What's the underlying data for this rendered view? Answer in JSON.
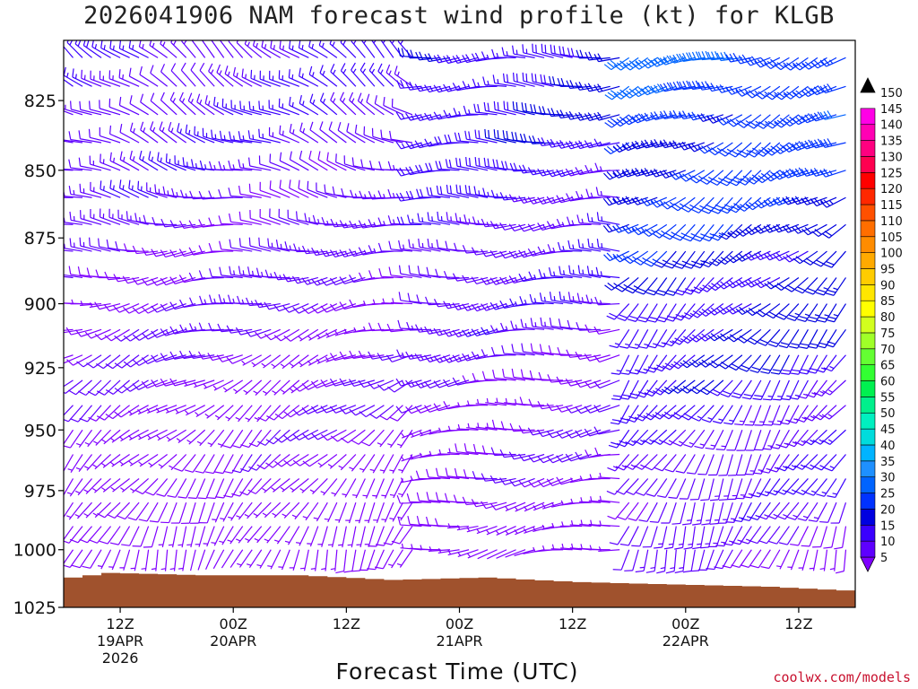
{
  "title": "2026041906 NAM forecast wind profile (kt) for KLGB",
  "credit": "coolwx.com/models",
  "chart_data": {
    "type": "wind-barb-profile",
    "title": "2026041906 NAM forecast wind profile (kt) for KLGB",
    "xlabel": "Forecast Time (UTC)",
    "ylabel": "",
    "y_axis": {
      "ticks": [
        825,
        850,
        875,
        900,
        925,
        950,
        975,
        1000,
        1025
      ],
      "range": [
        804,
        1025
      ],
      "reversed": true,
      "log_scale": true
    },
    "x_axis": {
      "range_hours": [
        6,
        90
      ],
      "ticks": [
        {
          "hour": 12,
          "label": "12Z",
          "date": "19APR",
          "year": "2026"
        },
        {
          "hour": 24,
          "label": "00Z",
          "date": "20APR",
          "year": ""
        },
        {
          "hour": 36,
          "label": "12Z",
          "date": "",
          "year": ""
        },
        {
          "hour": 48,
          "label": "00Z",
          "date": "21APR",
          "year": ""
        },
        {
          "hour": 60,
          "label": "12Z",
          "date": "",
          "year": ""
        },
        {
          "hour": 72,
          "label": "00Z",
          "date": "22APR",
          "year": ""
        },
        {
          "hour": 84,
          "label": "12Z",
          "date": "",
          "year": ""
        }
      ]
    },
    "colorbar": {
      "levels": [
        5,
        10,
        15,
        20,
        25,
        30,
        35,
        40,
        45,
        50,
        55,
        60,
        65,
        70,
        75,
        80,
        85,
        90,
        95,
        100,
        105,
        110,
        115,
        120,
        125,
        130,
        135,
        140,
        145,
        150
      ],
      "colors": [
        "#7f00ff",
        "#5e00ff",
        "#3a00ff",
        "#0000e0",
        "#0032ff",
        "#0064ff",
        "#1e90ff",
        "#00b4ff",
        "#00dcdc",
        "#00f0c0",
        "#00f08c",
        "#00f050",
        "#32ff32",
        "#64ff32",
        "#a0ff28",
        "#d2ff1e",
        "#ffff00",
        "#ffe600",
        "#ffcc00",
        "#ffaa00",
        "#ff8c00",
        "#ff6e00",
        "#ff5000",
        "#ff2800",
        "#ff0000",
        "#ff0050",
        "#ff0080",
        "#ff00b4",
        "#ff00e6",
        "#000000"
      ]
    },
    "terrain_color": "#a0522d",
    "surface_pressure": [
      {
        "hour": 6,
        "p": 1012
      },
      {
        "hour": 10,
        "p": 1010
      },
      {
        "hour": 20,
        "p": 1011
      },
      {
        "hour": 30,
        "p": 1011
      },
      {
        "hour": 40,
        "p": 1013
      },
      {
        "hour": 50,
        "p": 1012
      },
      {
        "hour": 60,
        "p": 1014
      },
      {
        "hour": 70,
        "p": 1015
      },
      {
        "hour": 80,
        "p": 1016
      },
      {
        "hour": 90,
        "p": 1018
      }
    ],
    "wind_levels_hpa": [
      810,
      820,
      830,
      840,
      850,
      860,
      870,
      880,
      890,
      900,
      910,
      920,
      930,
      940,
      950,
      960,
      970,
      980,
      990,
      1000
    ],
    "wind_field": {
      "step_hours": 1.0,
      "regimes": [
        {
          "from_hour": 6,
          "to_hour": 44,
          "low_level_dir_deg": 200,
          "upper_dir_deg": 310,
          "speed_kt": [
            5,
            15
          ]
        },
        {
          "from_hour": 44,
          "to_hour": 66,
          "low_level_dir_deg": 260,
          "upper_dir_deg": 270,
          "speed_kt": [
            5,
            20
          ]
        },
        {
          "from_hour": 66,
          "to_hour": 90,
          "low_level_dir_deg": 200,
          "upper_dir_deg": 250,
          "speed_kt": [
            10,
            30
          ]
        }
      ]
    }
  }
}
